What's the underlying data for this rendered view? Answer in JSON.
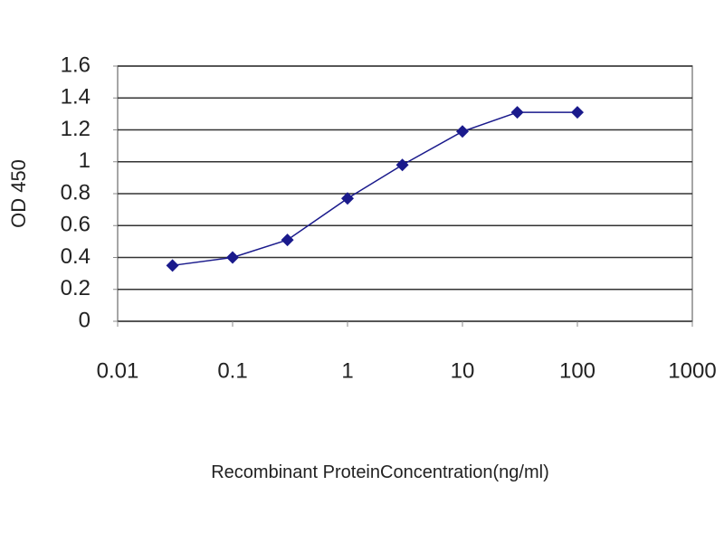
{
  "chart_data": {
    "type": "line",
    "x_label": "Recombinant ProteinConcentration(ng/ml)",
    "y_label": "OD 450",
    "x": [
      0.03,
      0.1,
      0.3,
      1,
      3,
      10,
      30,
      100
    ],
    "values": [
      0.35,
      0.4,
      0.51,
      0.77,
      0.98,
      1.19,
      1.31,
      1.31
    ],
    "color": "#1a1a8c",
    "xscale": "log",
    "xlim": [
      0.01,
      1000
    ],
    "xticks": [
      0.01,
      0.1,
      1,
      10,
      100,
      1000
    ],
    "ylim": [
      0,
      1.6
    ],
    "yticks": [
      0,
      0.2,
      0.4,
      0.6,
      0.8,
      1,
      1.2,
      1.4,
      1.6
    ],
    "grid": true
  }
}
